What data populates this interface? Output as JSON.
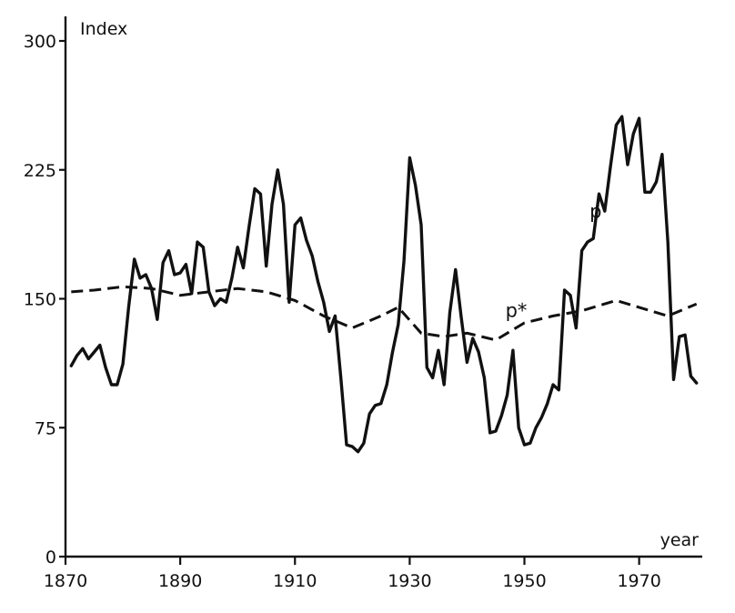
{
  "chart_data": {
    "type": "line",
    "title": "",
    "ylabel": "Index",
    "xlabel": "year",
    "xlim": [
      1870,
      1981
    ],
    "ylim": [
      0,
      300
    ],
    "x_ticks": [
      1870,
      1890,
      1910,
      1930,
      1950,
      1970
    ],
    "y_ticks": [
      0,
      75,
      150,
      225,
      300
    ],
    "grid": false,
    "legend": "none",
    "series": [
      {
        "name": "p",
        "style": "solid",
        "x": [
          1871,
          1872,
          1873,
          1874,
          1875,
          1876,
          1877,
          1878,
          1879,
          1880,
          1881,
          1882,
          1883,
          1884,
          1885,
          1886,
          1887,
          1888,
          1889,
          1890,
          1891,
          1892,
          1893,
          1894,
          1895,
          1896,
          1897,
          1898,
          1899,
          1900,
          1901,
          1902,
          1903,
          1904,
          1905,
          1906,
          1907,
          1908,
          1909,
          1910,
          1911,
          1912,
          1913,
          1914,
          1915,
          1916,
          1917,
          1918,
          1919,
          1920,
          1921,
          1922,
          1923,
          1924,
          1925,
          1926,
          1927,
          1928,
          1929,
          1930,
          1931,
          1932,
          1933,
          1934,
          1935,
          1936,
          1937,
          1938,
          1939,
          1940,
          1941,
          1942,
          1943,
          1944,
          1945,
          1946,
          1947,
          1948,
          1949,
          1950,
          1951,
          1952,
          1953,
          1954,
          1955,
          1956,
          1957,
          1958,
          1959,
          1960,
          1961,
          1962,
          1963,
          1964,
          1965,
          1966,
          1967,
          1968,
          1969,
          1970,
          1971,
          1972,
          1973,
          1974,
          1975,
          1976,
          1977,
          1978,
          1979,
          1980
        ],
        "values": [
          111,
          117,
          121,
          115,
          119,
          123,
          110,
          100,
          100,
          112,
          145,
          173,
          162,
          164,
          156,
          138,
          171,
          178,
          164,
          165,
          170,
          153,
          183,
          180,
          154,
          146,
          150,
          148,
          162,
          180,
          168,
          192,
          214,
          211,
          169,
          205,
          225,
          205,
          148,
          193,
          197,
          184,
          175,
          160,
          148,
          131,
          140,
          104,
          65,
          64,
          61,
          66,
          83,
          88,
          89,
          100,
          119,
          135,
          172,
          232,
          216,
          193,
          110,
          104,
          120,
          100,
          142,
          167,
          139,
          113,
          127,
          119,
          104,
          72,
          73,
          82,
          94,
          120,
          75,
          65,
          66,
          75,
          81,
          89,
          100,
          97,
          155,
          152,
          133,
          178,
          183,
          185,
          211,
          201,
          227,
          251,
          256,
          228,
          246,
          255,
          212,
          212,
          218,
          234,
          183,
          103,
          128,
          129,
          105,
          101
        ]
      },
      {
        "name": "p*",
        "style": "dashed",
        "x": [
          1871,
          1875,
          1880,
          1885,
          1890,
          1895,
          1900,
          1905,
          1910,
          1915,
          1920,
          1925,
          1928,
          1932,
          1936,
          1940,
          1945,
          1950,
          1955,
          1960,
          1966,
          1970,
          1975,
          1980
        ],
        "values": [
          154,
          155,
          157,
          156,
          152,
          154,
          156,
          154,
          149,
          140,
          133,
          140,
          145,
          130,
          128,
          130,
          126,
          136,
          140,
          143,
          149,
          145,
          140,
          147
        ]
      }
    ],
    "annotations": [
      {
        "text": "p",
        "x": 1962,
        "y": 205
      },
      {
        "text": "p*",
        "x": 1947,
        "y": 143
      }
    ]
  }
}
